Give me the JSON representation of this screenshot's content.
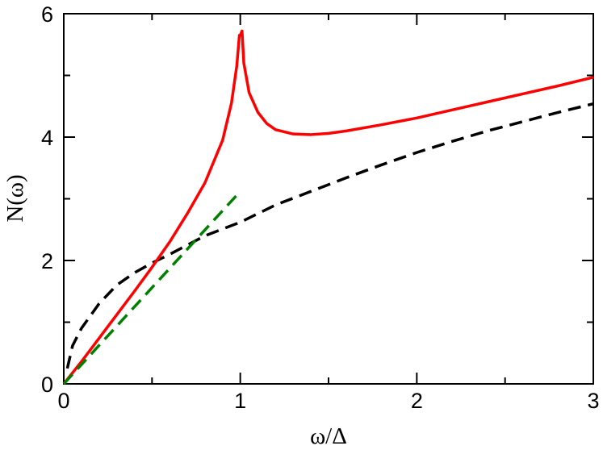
{
  "chart_data": {
    "type": "line",
    "title": "",
    "xlabel": "ω/Δ",
    "ylabel": "N(ω)",
    "xlim": [
      0,
      3
    ],
    "ylim": [
      0,
      6
    ],
    "xticks": [
      0,
      1,
      2,
      3
    ],
    "yticks": [
      0,
      2,
      4,
      6
    ],
    "xtick_labels": [
      "0",
      "1",
      "2",
      "3"
    ],
    "ytick_labels": [
      "0",
      "2",
      "4",
      "6"
    ],
    "grid": false,
    "legend": "none",
    "series": [
      {
        "style": "solid",
        "color": "#ff0000",
        "x": [
          0,
          0.1,
          0.2,
          0.3,
          0.4,
          0.5,
          0.6,
          0.7,
          0.8,
          0.9,
          0.95,
          0.98,
          0.995,
          1.0,
          1.01,
          1.02,
          1.05,
          1.1,
          1.15,
          1.2,
          1.3,
          1.4,
          1.5,
          1.6,
          1.8,
          2.0,
          2.2,
          2.4,
          2.6,
          2.8,
          3.0
        ],
        "y": [
          0,
          0.36,
          0.74,
          1.12,
          1.5,
          1.89,
          2.3,
          2.76,
          3.26,
          3.95,
          4.55,
          5.15,
          5.65,
          5.65,
          5.72,
          5.2,
          4.72,
          4.4,
          4.22,
          4.12,
          4.05,
          4.04,
          4.06,
          4.1,
          4.2,
          4.31,
          4.44,
          4.57,
          4.7,
          4.83,
          4.97
        ]
      },
      {
        "style": "dashed",
        "color": "#000000",
        "x": [
          0.02,
          0.05,
          0.1,
          0.2,
          0.3,
          0.4,
          0.5,
          0.6,
          0.8,
          1.0,
          1.2,
          1.4,
          1.6,
          1.8,
          2.0,
          2.2,
          2.4,
          2.6,
          2.8,
          3.0
        ],
        "y": [
          0.25,
          0.62,
          0.9,
          1.3,
          1.6,
          1.8,
          1.96,
          2.1,
          2.4,
          2.62,
          2.9,
          3.12,
          3.34,
          3.55,
          3.75,
          3.93,
          4.1,
          4.25,
          4.4,
          4.54
        ]
      },
      {
        "style": "dashed",
        "color": "#008000",
        "x": [
          0,
          1.0
        ],
        "y": [
          0,
          3.12
        ]
      }
    ]
  }
}
